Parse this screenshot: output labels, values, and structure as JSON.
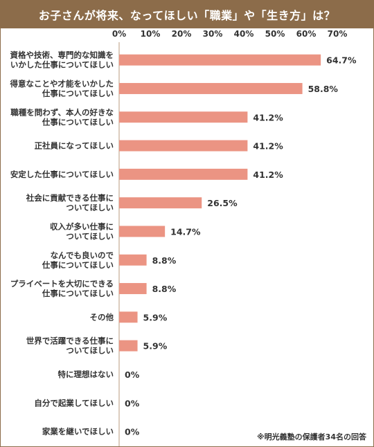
{
  "title": "お子さんが将来、なってほしい「職業」や「生き方」は？",
  "note": "※明光義塾の保護者34名の回答",
  "colors": {
    "header": "#8c6c4a",
    "bar": "#eb9483",
    "axis": "#b89a7c",
    "text": "#333333"
  },
  "chart_data": {
    "type": "bar",
    "orientation": "horizontal",
    "x_ticks": [
      "0%",
      "10%",
      "20%",
      "30%",
      "40%",
      "50%",
      "60%",
      "70%"
    ],
    "xlim": [
      0,
      70
    ],
    "categories": [
      [
        "資格や技術、専門的な知識を",
        "いかした仕事についてほしい"
      ],
      [
        "得意なことや才能をいかした",
        "仕事についてほしい"
      ],
      [
        "職種を問わず、本人の好きな",
        "仕事についてほしい"
      ],
      [
        "正社員になってほしい"
      ],
      [
        "安定した仕事についてほしい"
      ],
      [
        "社会に貢献できる仕事に",
        "ついてほしい"
      ],
      [
        "収入が多い仕事に",
        "ついてほしい"
      ],
      [
        "なんでも良いので",
        "仕事についてほしい"
      ],
      [
        "プライベートを大切にできる",
        "仕事についてほしい"
      ],
      [
        "その他"
      ],
      [
        "世界で活躍できる仕事に",
        "ついてほしい"
      ],
      [
        "特に理想はない"
      ],
      [
        "自分で起業してほしい"
      ],
      [
        "家業を継いでほしい"
      ]
    ],
    "values": [
      64.7,
      58.8,
      41.2,
      41.2,
      41.2,
      26.5,
      14.7,
      8.8,
      8.8,
      5.9,
      5.9,
      0,
      0,
      0
    ],
    "value_labels": [
      "64.7%",
      "58.8%",
      "41.2%",
      "41.2%",
      "41.2%",
      "26.5%",
      "14.7%",
      "8.8%",
      "8.8%",
      "5.9%",
      "5.9%",
      "0%",
      "0%",
      "0%"
    ],
    "grid": false
  }
}
